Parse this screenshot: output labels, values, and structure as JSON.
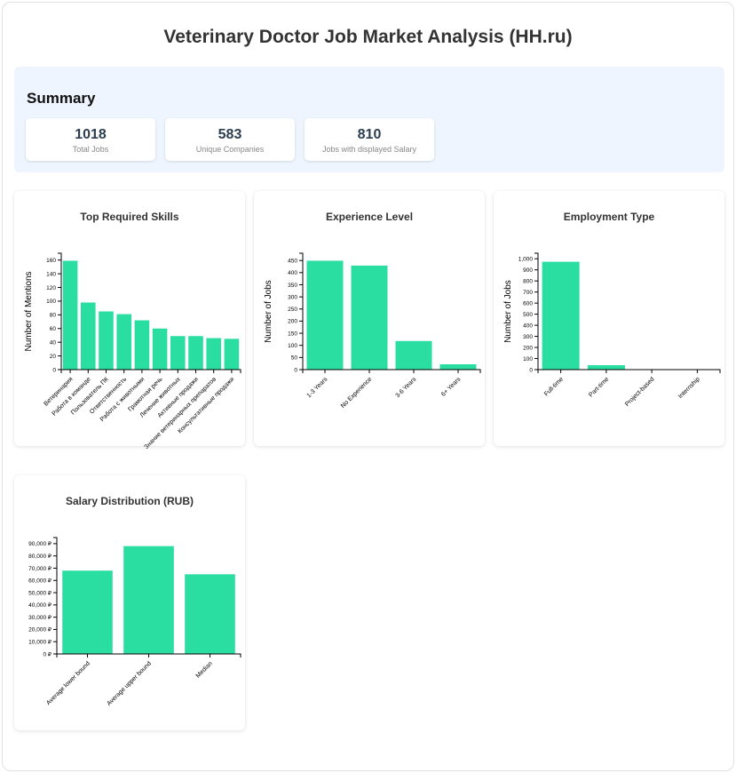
{
  "page": {
    "title": "Veterinary Doctor Job Market Analysis (HH.ru)"
  },
  "summary": {
    "title": "Summary",
    "stats": [
      {
        "value": "1018",
        "label": "Total Jobs"
      },
      {
        "value": "583",
        "label": "Unique Companies"
      },
      {
        "value": "810",
        "label": "Jobs with displayed Salary"
      }
    ]
  },
  "chart_data": [
    {
      "id": "skills",
      "type": "bar",
      "title": "Top Required Skills",
      "ylabel": "Number of Mentions",
      "categories": [
        "Ветеринария",
        "Работа в команде",
        "Пользователь ПК",
        "Ответственность",
        "Работа с животными",
        "Грамотная речь",
        "Лечение животных",
        "Активные продажи",
        "Знание ветеринарных препаратов",
        "Консультативные продажи"
      ],
      "values": [
        159,
        98,
        85,
        81,
        72,
        60,
        49,
        49,
        46,
        45
      ],
      "ylim": [
        0,
        170
      ],
      "yticks": [
        0,
        20,
        40,
        60,
        80,
        100,
        120,
        140,
        160
      ],
      "ytick_labels": [
        "0",
        "20",
        "40",
        "60",
        "80",
        "100",
        "120",
        "140",
        "160"
      ],
      "grid": false
    },
    {
      "id": "experience",
      "type": "bar",
      "title": "Experience Level",
      "ylabel": "Number of Jobs",
      "categories": [
        "1-3 Years",
        "No Experience",
        "3-6 Years",
        "6+ Years"
      ],
      "values": [
        449,
        429,
        118,
        22
      ],
      "ylim": [
        0,
        480
      ],
      "yticks": [
        0,
        50,
        100,
        150,
        200,
        250,
        300,
        350,
        400,
        450
      ],
      "ytick_labels": [
        "0",
        "50",
        "100",
        "150",
        "200",
        "250",
        "300",
        "350",
        "400",
        "450"
      ],
      "grid": false
    },
    {
      "id": "employment",
      "type": "bar",
      "title": "Employment Type",
      "ylabel": "Number of Jobs",
      "categories": [
        "Full-time",
        "Part-time",
        "Project-based",
        "Internship"
      ],
      "values": [
        973,
        40,
        3,
        2
      ],
      "ylim": [
        0,
        1050
      ],
      "yticks": [
        0,
        100,
        200,
        300,
        400,
        500,
        600,
        700,
        800,
        900,
        1000
      ],
      "ytick_labels": [
        "0",
        "100",
        "200",
        "300",
        "400",
        "500",
        "600",
        "700",
        "800",
        "900",
        "1,000"
      ],
      "grid": false
    },
    {
      "id": "salary",
      "type": "bar",
      "title": "Salary Distribution (RUB)",
      "ylabel": "",
      "categories": [
        "Average lower bound",
        "Average upper bound",
        "Median"
      ],
      "values": [
        68000,
        88000,
        65000
      ],
      "ylim": [
        0,
        95000
      ],
      "yticks": [
        0,
        10000,
        20000,
        30000,
        40000,
        50000,
        60000,
        70000,
        80000,
        90000
      ],
      "ytick_labels": [
        "0 ₽",
        "10,000 ₽",
        "20,000 ₽",
        "30,000 ₽",
        "40,000 ₽",
        "50,000 ₽",
        "60,000 ₽",
        "70,000 ₽",
        "80,000 ₽",
        "90,000 ₽"
      ],
      "grid": false
    }
  ]
}
